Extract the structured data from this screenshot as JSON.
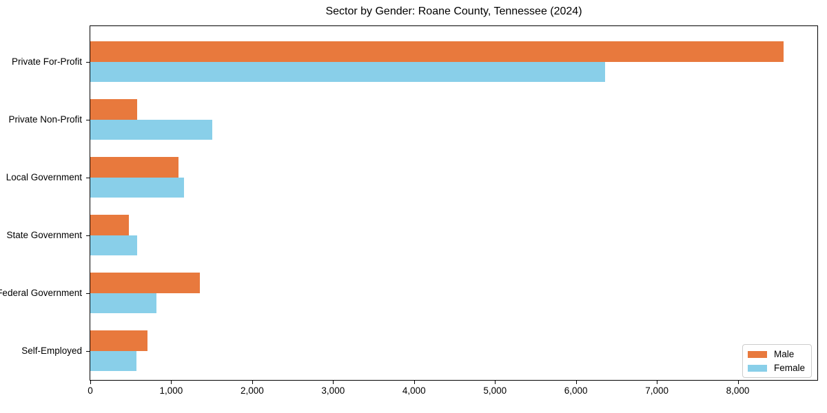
{
  "chart_data": {
    "type": "bar",
    "orientation": "horizontal",
    "title": "Sector by Gender: Roane County, Tennessee (2024)",
    "categories": [
      "Private For-Profit",
      "Private Non-Profit",
      "Local Government",
      "State Government",
      "Federal Government",
      "Self-Employed"
    ],
    "series": [
      {
        "name": "Male",
        "color": "#e8793d",
        "values": [
          8570,
          580,
          1090,
          480,
          1350,
          710
        ]
      },
      {
        "name": "Female",
        "color": "#89cfe9",
        "values": [
          6360,
          1510,
          1160,
          580,
          820,
          570
        ]
      }
    ],
    "xlim": [
      0,
      9000
    ],
    "x_ticks": [
      0,
      1000,
      2000,
      3000,
      4000,
      5000,
      6000,
      7000,
      8000
    ],
    "x_tick_labels": [
      "0",
      "1,000",
      "2,000",
      "3,000",
      "4,000",
      "5,000",
      "6,000",
      "7,000",
      "8,000"
    ],
    "xlabel": "",
    "ylabel": "",
    "grid": false,
    "legend_position": "lower right",
    "legend_entries": [
      "Male",
      "Female"
    ]
  },
  "colors": {
    "male": "#e8793d",
    "female": "#89cfe9",
    "axis": "#000000",
    "legend_border": "#cccccc",
    "background": "#ffffff"
  }
}
